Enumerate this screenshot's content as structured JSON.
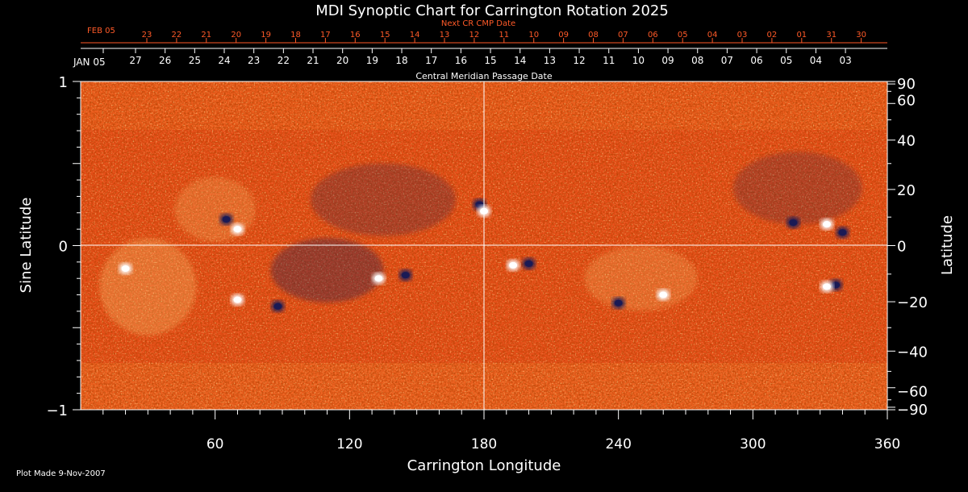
{
  "chart_data": {
    "type": "heatmap",
    "title": "MDI Synoptic Chart for Carrington Rotation 2025",
    "xlabel": "Carrington Longitude",
    "ylabel_left": "Sine Latitude",
    "ylabel_right": "Latitude",
    "xlim": [
      0,
      360
    ],
    "ylim": [
      -1,
      1
    ],
    "x_ticks": [
      60,
      120,
      180,
      240,
      300,
      360
    ],
    "left_y_ticks": [
      "1",
      "0",
      "−1"
    ],
    "right_y_ticks": [
      90,
      60,
      40,
      20,
      0,
      -20,
      -40,
      -60,
      -90
    ],
    "crosshair": {
      "longitude": 180,
      "sine_latitude": 0
    },
    "top_axis": {
      "label": "Central Meridian Passage Date",
      "start_label": "JAN 05",
      "dates": [
        "27",
        "26",
        "25",
        "24",
        "23",
        "22",
        "21",
        "20",
        "19",
        "18",
        "17",
        "16",
        "15",
        "14",
        "13",
        "12",
        "11",
        "10",
        "09",
        "08",
        "07",
        "06",
        "05",
        "04",
        "03"
      ]
    },
    "next_cr_axis": {
      "label": "Next CR CMP Date",
      "start_label": "FEB 05",
      "dates": [
        "23",
        "22",
        "21",
        "20",
        "19",
        "18",
        "17",
        "16",
        "15",
        "14",
        "13",
        "12",
        "11",
        "10",
        "09",
        "08",
        "07",
        "06",
        "05",
        "04",
        "03",
        "02",
        "01",
        "31",
        "30"
      ]
    },
    "colors": {
      "background": "#000000",
      "field_base": "#e8501a",
      "positive": "#ffffff",
      "negative": "#1a1a55",
      "next_cr_text": "#ff5a28",
      "axis": "#ffffff"
    },
    "features": [
      {
        "polarity": "negative",
        "lon": 178,
        "sinlat": 0.25
      },
      {
        "polarity": "positive",
        "lon": 180,
        "sinlat": 0.21
      },
      {
        "polarity": "negative",
        "lon": 65,
        "sinlat": 0.16
      },
      {
        "polarity": "positive",
        "lon": 70,
        "sinlat": 0.1
      },
      {
        "polarity": "negative",
        "lon": 145,
        "sinlat": -0.18
      },
      {
        "polarity": "positive",
        "lon": 133,
        "sinlat": -0.2
      },
      {
        "polarity": "positive",
        "lon": 193,
        "sinlat": -0.12
      },
      {
        "polarity": "negative",
        "lon": 200,
        "sinlat": -0.11
      },
      {
        "polarity": "negative",
        "lon": 340,
        "sinlat": 0.08
      },
      {
        "polarity": "positive",
        "lon": 333,
        "sinlat": 0.13
      },
      {
        "polarity": "negative",
        "lon": 318,
        "sinlat": 0.14
      },
      {
        "polarity": "negative",
        "lon": 88,
        "sinlat": -0.37
      },
      {
        "polarity": "positive",
        "lon": 70,
        "sinlat": -0.33
      },
      {
        "polarity": "positive",
        "lon": 20,
        "sinlat": -0.14
      },
      {
        "polarity": "negative",
        "lon": 337,
        "sinlat": -0.24
      },
      {
        "polarity": "positive",
        "lon": 333,
        "sinlat": -0.25
      },
      {
        "polarity": "negative",
        "lon": 240,
        "sinlat": -0.35
      },
      {
        "polarity": "positive",
        "lon": 260,
        "sinlat": -0.3
      }
    ]
  },
  "footer": {
    "plot_made": "Plot Made  9-Nov-2007"
  }
}
